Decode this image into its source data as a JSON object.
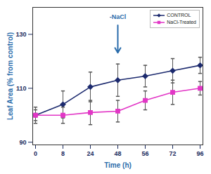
{
  "chart_data": {
    "type": "line",
    "x_label": "Time (h)",
    "y_label": "Leaf Area (% from control)",
    "categories": [
      "0",
      "8",
      "24",
      "48",
      "56",
      "72",
      "96"
    ],
    "series": [
      {
        "name": "CONTROL",
        "color": "#1c2a6e",
        "marker": "diamond",
        "values": [
          100,
          104,
          110.5,
          113,
          114.5,
          116.5,
          118.5
        ],
        "errors": [
          3,
          5,
          5.5,
          6,
          4,
          4.5,
          3
        ]
      },
      {
        "name": "NaCl-Treated",
        "color": "#e236c6",
        "marker": "square",
        "values": [
          100,
          100,
          101,
          101.5,
          105.5,
          108.5,
          110
        ],
        "errors": [
          2,
          3,
          4.5,
          4,
          3.5,
          4.5,
          2.5
        ]
      }
    ],
    "ylim": [
      89,
      140
    ],
    "yticks": [
      90,
      110,
      130
    ],
    "grid": false,
    "legend": "top-right",
    "annotations": [
      {
        "text": "-NaCl",
        "x": "48"
      }
    ]
  }
}
